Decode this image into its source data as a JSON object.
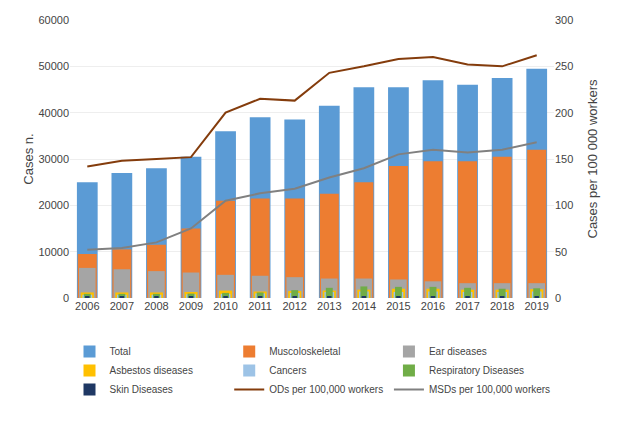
{
  "chart_data": {
    "type": "bar",
    "categories": [
      "2006",
      "2007",
      "2008",
      "2009",
      "2010",
      "2011",
      "2012",
      "2013",
      "2014",
      "2015",
      "2016",
      "2017",
      "2018",
      "2019"
    ],
    "series": [
      {
        "name": "Total",
        "type": "bar",
        "color": "#5B9BD5",
        "values": [
          25000,
          27000,
          28000,
          30500,
          36000,
          39000,
          38500,
          41500,
          45500,
          45500,
          47000,
          46000,
          47500,
          49500
        ]
      },
      {
        "name": "Muscoloskeletal",
        "type": "bar",
        "color": "#ED7D31",
        "values": [
          9500,
          10500,
          11500,
          15000,
          21000,
          21500,
          21500,
          22500,
          25000,
          28500,
          29500,
          29500,
          30500,
          32000
        ]
      },
      {
        "name": "Ear diseases",
        "type": "bar",
        "color": "#A5A5A5",
        "values": [
          6500,
          6200,
          5800,
          5500,
          5000,
          4800,
          4500,
          4200,
          4200,
          4000,
          3600,
          3200,
          3200,
          3200
        ]
      },
      {
        "name": "Asbestos diseases",
        "type": "bar",
        "color": "#FFC000",
        "values": [
          1200,
          1200,
          1200,
          1300,
          1600,
          1400,
          1500,
          1600,
          1800,
          2000,
          2000,
          1800,
          1800,
          1900
        ]
      },
      {
        "name": "Cancers",
        "type": "bar",
        "color": "#9DC3E6",
        "values": [
          700,
          700,
          700,
          800,
          900,
          1000,
          1100,
          1300,
          1400,
          1300,
          1400,
          1300,
          1300,
          1400
        ]
      },
      {
        "name": "Respiratory Diseases",
        "type": "bar",
        "color": "#70AD47",
        "values": [
          900,
          900,
          900,
          950,
          1100,
          1200,
          1700,
          2200,
          2500,
          2400,
          2400,
          2200,
          2000,
          2100
        ]
      },
      {
        "name": "Skin Diseases",
        "type": "bar",
        "color": "#1F3864",
        "values": [
          300,
          300,
          300,
          300,
          350,
          350,
          350,
          400,
          400,
          400,
          400,
          400,
          400,
          400
        ]
      },
      {
        "name": "ODs per 100,000 workers",
        "type": "line",
        "axis": "y2",
        "color": "#843C0C",
        "values": [
          142,
          148,
          150,
          152,
          200,
          215,
          213,
          243,
          250,
          258,
          260,
          252,
          250,
          262
        ]
      },
      {
        "name": "MSDs per 100,000 workers",
        "type": "line",
        "axis": "y2",
        "color": "#808080",
        "values": [
          52,
          54,
          60,
          75,
          105,
          113,
          118,
          130,
          140,
          155,
          160,
          157,
          160,
          168
        ]
      }
    ],
    "ylabel": "Cases n.",
    "y2label": "Cases per 100 000 workers",
    "ylim": [
      0,
      60000
    ],
    "yticks": [
      0,
      10000,
      20000,
      30000,
      40000,
      50000,
      60000
    ],
    "y2lim": [
      0,
      300
    ],
    "y2ticks": [
      0,
      50,
      100,
      150,
      200,
      250,
      300
    ],
    "grid": true,
    "legend": "bottom"
  }
}
